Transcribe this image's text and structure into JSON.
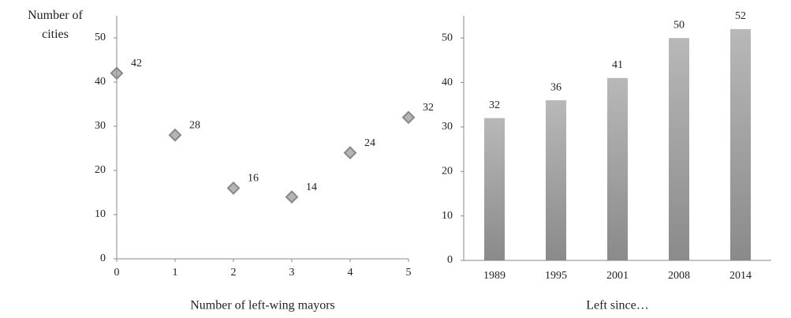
{
  "chart_data": [
    {
      "type": "scatter",
      "ylabel": "Number of cities",
      "xlabel": "Number of left-wing mayors",
      "x": [
        0,
        1,
        2,
        3,
        4,
        5
      ],
      "values": [
        42,
        28,
        16,
        14,
        24,
        32
      ],
      "color": "#b5b5b5",
      "xlim": [
        0,
        5
      ],
      "xticks": [
        0,
        1,
        2,
        3,
        4,
        5
      ],
      "ylim": [
        0,
        55
      ],
      "yticks": [
        0,
        10,
        20,
        30,
        40,
        50
      ]
    },
    {
      "type": "bar",
      "xlabel": "Left since…",
      "categories": [
        "1989",
        "1995",
        "2001",
        "2008",
        "2014"
      ],
      "values": [
        32,
        36,
        41,
        50,
        52
      ],
      "color": "#a0a0a0",
      "ylim": [
        0,
        55
      ],
      "yticks": [
        0,
        10,
        20,
        30,
        40,
        50
      ]
    }
  ]
}
